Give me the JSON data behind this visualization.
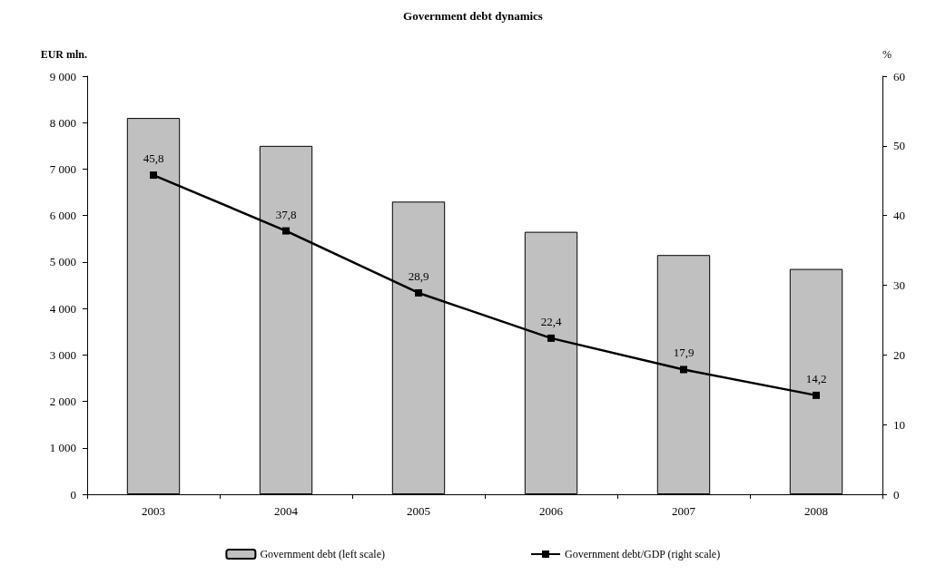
{
  "chart_data": {
    "type": "bar",
    "title": "Government debt dynamics",
    "ylabel": "EUR mln.",
    "y2label": "%",
    "categories": [
      "2003",
      "2004",
      "2005",
      "2006",
      "2007",
      "2008"
    ],
    "series": [
      {
        "name": "Government debt (left scale)",
        "color": "#c0c0c0",
        "values": [
          8100,
          7500,
          6300,
          5650,
          5150,
          4850
        ]
      },
      {
        "name": "Government debt/GDP (right scale)",
        "type": "line",
        "axis": "y2",
        "color": "#000000",
        "marker": "square",
        "values": [
          45.8,
          37.8,
          28.9,
          22.4,
          17.9,
          14.2
        ],
        "value_labels": [
          "45,8",
          "37,8",
          "28,9",
          "22,4",
          "17,9",
          "14,2"
        ]
      }
    ],
    "ylim": [
      0,
      9000
    ],
    "yticks": [
      {
        "value": 0,
        "label": "0"
      },
      {
        "value": 1000,
        "label": "1 000"
      },
      {
        "value": 2000,
        "label": "2 000"
      },
      {
        "value": 3000,
        "label": "3 000"
      },
      {
        "value": 4000,
        "label": "4 000"
      },
      {
        "value": 5000,
        "label": "5 000"
      },
      {
        "value": 6000,
        "label": "6 000"
      },
      {
        "value": 7000,
        "label": "7 000"
      },
      {
        "value": 8000,
        "label": "8 000"
      },
      {
        "value": 9000,
        "label": "9 000"
      }
    ],
    "y2lim": [
      0,
      60
    ],
    "y2ticks": [
      0,
      10,
      20,
      30,
      40,
      50,
      60
    ],
    "grid": false,
    "legend": "bottom"
  }
}
